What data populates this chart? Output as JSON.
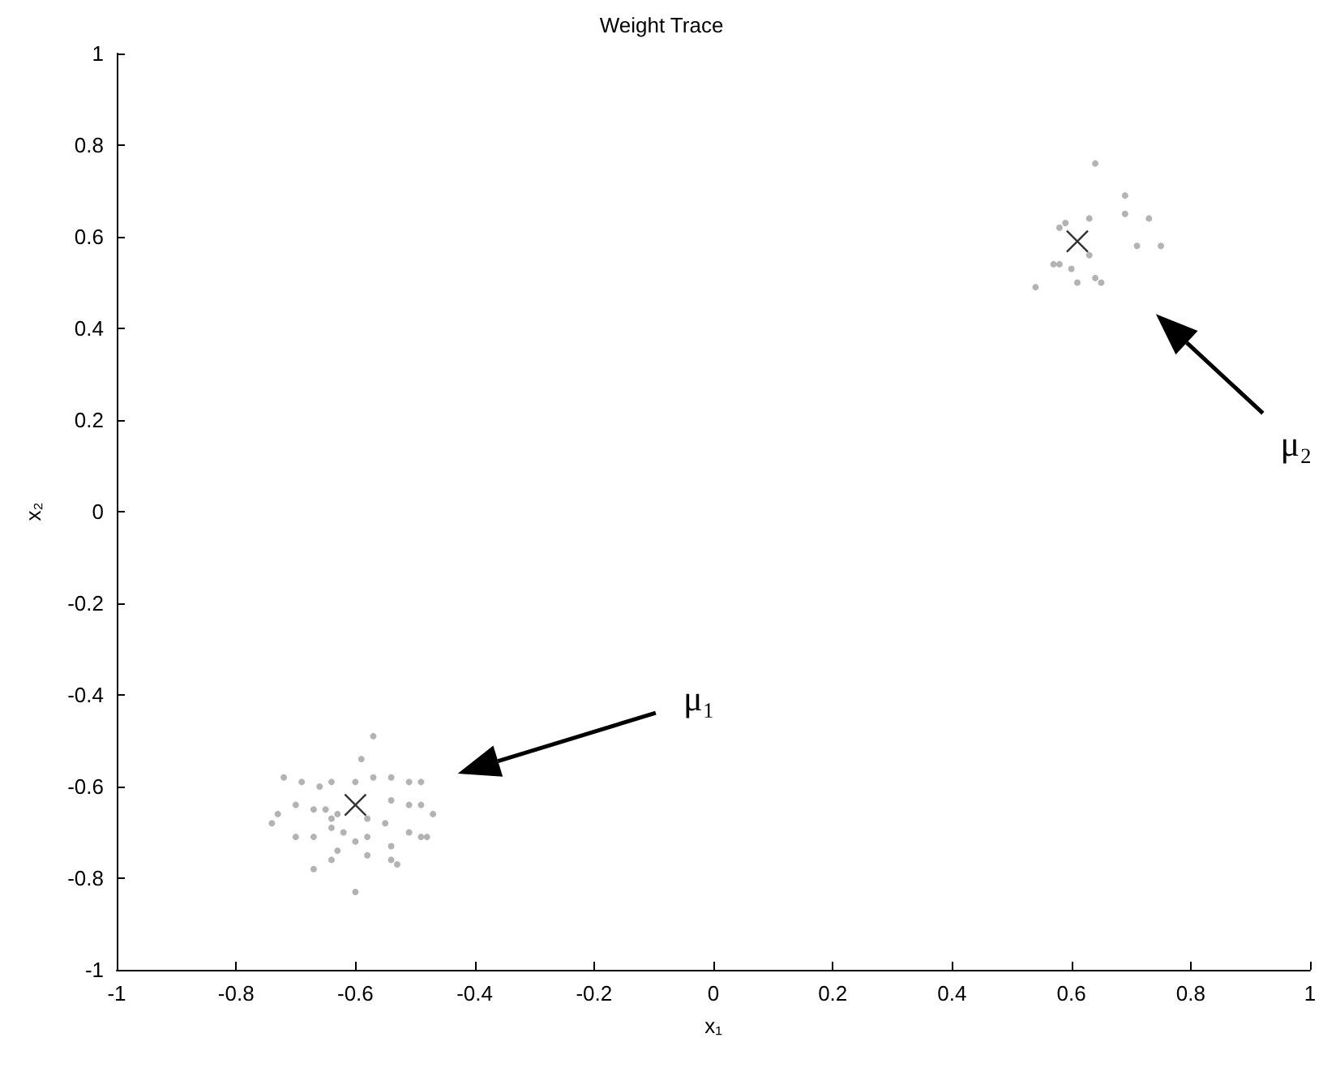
{
  "chart_data": {
    "type": "scatter",
    "title": "Weight Trace",
    "xlabel": "x₁",
    "ylabel": "x₂",
    "xlim": [
      -1,
      1
    ],
    "ylim": [
      -1,
      1
    ],
    "xticks": [
      -1,
      -0.8,
      -0.6,
      -0.4,
      -0.2,
      0,
      0.2,
      0.4,
      0.6,
      0.8,
      1
    ],
    "yticks": [
      -1,
      -0.8,
      -0.6,
      -0.4,
      -0.2,
      0,
      0.2,
      0.4,
      0.6,
      0.8,
      1
    ],
    "grid": false,
    "series": [
      {
        "color": "#a0a0a0",
        "marker": "circle",
        "x": [
          -0.57,
          -0.59,
          -0.72,
          -0.69,
          -0.66,
          -0.64,
          -0.6,
          -0.57,
          -0.54,
          -0.51,
          -0.49,
          -0.54,
          -0.51,
          -0.49,
          -0.47,
          -0.73,
          -0.7,
          -0.67,
          -0.65,
          -0.74,
          -0.7,
          -0.67,
          -0.64,
          -0.62,
          -0.58,
          -0.6,
          -0.55,
          -0.51,
          -0.49,
          -0.48,
          -0.54,
          -0.63,
          -0.58,
          -0.64,
          -0.54,
          -0.53,
          -0.67,
          -0.6,
          -0.63,
          -0.64,
          -0.58,
          0.64,
          0.69,
          0.69,
          0.73,
          0.59,
          0.63,
          0.58,
          0.71,
          0.75,
          0.63,
          0.57,
          0.58,
          0.6,
          0.64,
          0.65,
          0.61,
          0.54
        ],
        "values": [
          -0.49,
          -0.54,
          -0.58,
          -0.59,
          -0.6,
          -0.59,
          -0.59,
          -0.58,
          -0.58,
          -0.59,
          -0.59,
          -0.63,
          -0.64,
          -0.64,
          -0.66,
          -0.66,
          -0.64,
          -0.65,
          -0.65,
          -0.68,
          -0.71,
          -0.71,
          -0.69,
          -0.7,
          -0.71,
          -0.72,
          -0.68,
          -0.7,
          -0.71,
          -0.71,
          -0.73,
          -0.74,
          -0.75,
          -0.76,
          -0.76,
          -0.77,
          -0.78,
          -0.83,
          -0.66,
          -0.67,
          -0.67,
          0.76,
          0.69,
          0.65,
          0.64,
          0.63,
          0.64,
          0.62,
          0.58,
          0.58,
          0.56,
          0.54,
          0.54,
          0.53,
          0.51,
          0.5,
          0.5,
          0.49
        ]
      },
      {
        "color": "#000000",
        "marker": "cross",
        "x": [
          -0.6,
          0.61
        ],
        "values": [
          -0.64,
          0.59
        ]
      }
    ],
    "annotations": [
      "μ₁",
      "μ₂"
    ]
  }
}
